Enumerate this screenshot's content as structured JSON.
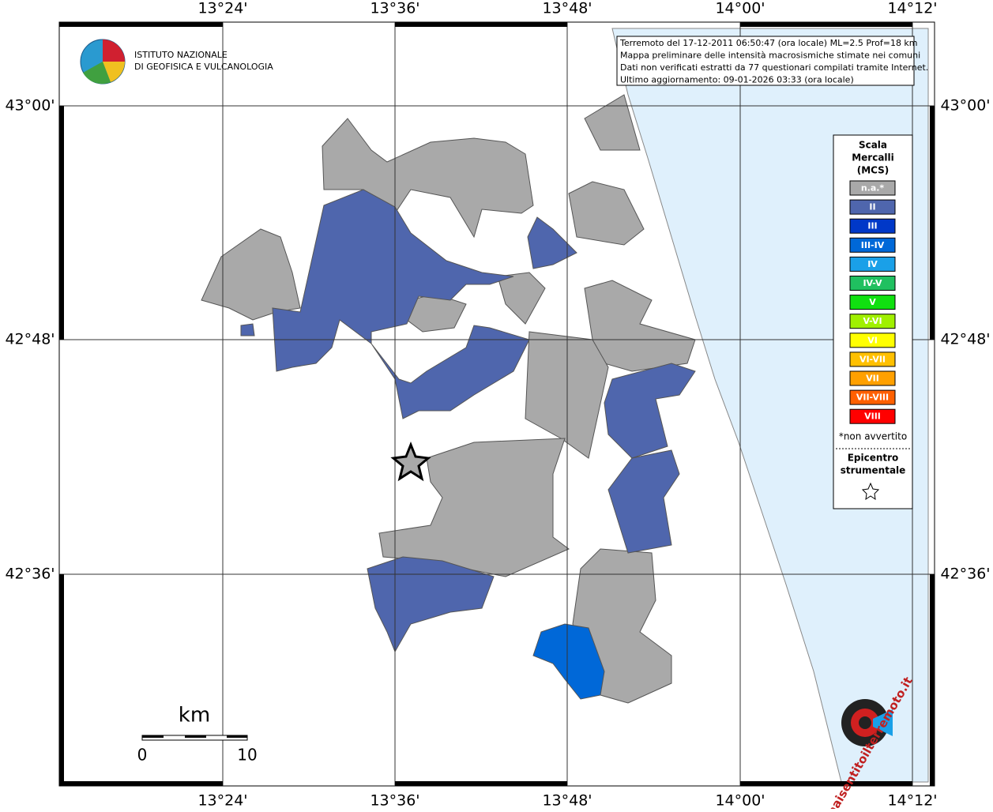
{
  "map": {
    "top_labels": [
      "13°24'",
      "13°36'",
      "13°48'",
      "14°00'",
      "14°12'"
    ],
    "bottom_labels": [
      "13°24'",
      "13°36'",
      "13°48'",
      "14°00'",
      "14°12'"
    ],
    "left_labels": [
      "43°00'",
      "42°48'",
      "42°36'"
    ],
    "right_labels": [
      "43°00'",
      "42°48'",
      "42°36'"
    ],
    "info": [
      "Terremoto del 17-12-2011 06:50:47 (ora locale) ML=2.5 Prof=18 km",
      "Mappa preliminare delle intensità macrosismiche stimate nei comuni",
      "Dati non verificati estratti da 77 questionari compilati tramite Internet.",
      "Ultimo aggiornamento: 09-01-2026 03:33 (ora locale)"
    ],
    "logo": [
      "ISTITUTO NAZIONALE",
      "DI GEOFISICA E VULCANOLOGIA"
    ],
    "legend": {
      "title": [
        "Scala",
        "Mercalli",
        "(MCS)"
      ],
      "items": [
        {
          "label": "n.a.*",
          "color": "#a9a9a9"
        },
        {
          "label": "II",
          "color": "#4f66ad"
        },
        {
          "label": "III",
          "color": "#0038c8"
        },
        {
          "label": "III-IV",
          "color": "#0068d8"
        },
        {
          "label": "IV",
          "color": "#1aa0e8"
        },
        {
          "label": "IV-V",
          "color": "#20c060"
        },
        {
          "label": "V",
          "color": "#10e010"
        },
        {
          "label": "V-VI",
          "color": "#a0f000"
        },
        {
          "label": "VI",
          "color": "#ffff00"
        },
        {
          "label": "VI-VII",
          "color": "#ffc000"
        },
        {
          "label": "VII",
          "color": "#ffa000"
        },
        {
          "label": "VII-VIII",
          "color": "#ff6000"
        },
        {
          "label": "VIII",
          "color": "#ff0000"
        }
      ],
      "note": "*non avvertito",
      "epicenter": [
        "Epicentro",
        "strumentale"
      ]
    },
    "scale": {
      "unit": "km",
      "start": "0",
      "end": "10"
    },
    "site": "www.haisentitoilterremoto.it"
  }
}
